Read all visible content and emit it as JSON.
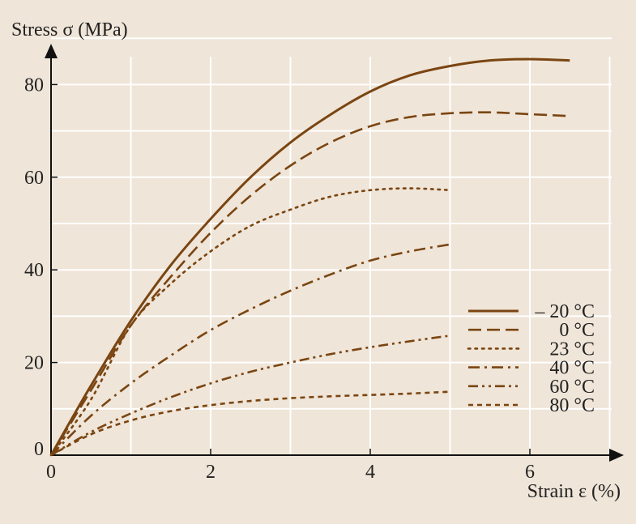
{
  "chart_data": {
    "type": "line",
    "ylabel": "Stress σ (MPa)",
    "xlabel": "Strain ε (%)",
    "xlim": [
      0,
      7
    ],
    "ylim": [
      0,
      90
    ],
    "xticks": [
      0,
      2,
      4,
      6
    ],
    "yticks": [
      0,
      20,
      40,
      60,
      80
    ],
    "grid": true,
    "legend_position": "bottom-right",
    "colors": {
      "line": "#7a4512",
      "grid": "#ffffff",
      "axis": "#111111",
      "background": "#efe5d8"
    },
    "series": [
      {
        "name": "– 20 °C",
        "style": "solid",
        "x": [
          0,
          0.5,
          1,
          1.5,
          2,
          2.5,
          3,
          3.5,
          4,
          4.5,
          5,
          5.5,
          6,
          6.5
        ],
        "y": [
          0,
          15,
          29,
          41,
          51,
          60,
          67.5,
          73.5,
          78.5,
          82,
          84,
          85.2,
          85.5,
          85.2
        ]
      },
      {
        "name": "0 °C",
        "style": "dashed",
        "x": [
          0,
          0.5,
          1,
          1.5,
          2,
          2.5,
          3,
          3.5,
          4,
          4.5,
          5,
          5.5,
          6,
          6.5
        ],
        "y": [
          0,
          14,
          28,
          38.5,
          48,
          56,
          62.5,
          67.5,
          71,
          73,
          73.8,
          74,
          73.6,
          73.2
        ]
      },
      {
        "name": "23 °C",
        "style": "dotted",
        "x": [
          0,
          0.5,
          1,
          1.5,
          2,
          2.5,
          3,
          3.5,
          4,
          4.5,
          5
        ],
        "y": [
          0,
          12,
          28,
          37,
          44,
          49.5,
          53,
          55.8,
          57.2,
          57.6,
          57.2
        ]
      },
      {
        "name": "40 °C",
        "style": "dash-dot",
        "x": [
          0,
          0.5,
          1,
          1.5,
          2,
          2.5,
          3,
          3.5,
          4,
          4.5,
          5
        ],
        "y": [
          0,
          8.5,
          15.5,
          21.5,
          27,
          31.5,
          35.5,
          39,
          42,
          44,
          45.5
        ]
      },
      {
        "name": "60 °C",
        "style": "dash-dot-dot",
        "x": [
          0,
          0.5,
          1,
          1.5,
          2,
          2.5,
          3,
          3.5,
          4,
          4.5,
          5
        ],
        "y": [
          0,
          5,
          9,
          12.5,
          15.5,
          18,
          20,
          21.8,
          23.3,
          24.6,
          25.8
        ]
      },
      {
        "name": "80 °C",
        "style": "short-dash",
        "x": [
          0,
          0.5,
          1,
          1.5,
          2,
          2.5,
          3,
          3.5,
          4,
          4.5,
          5
        ],
        "y": [
          0,
          4.5,
          7.5,
          9.5,
          10.8,
          11.7,
          12.3,
          12.7,
          13,
          13.3,
          13.7
        ]
      }
    ]
  }
}
